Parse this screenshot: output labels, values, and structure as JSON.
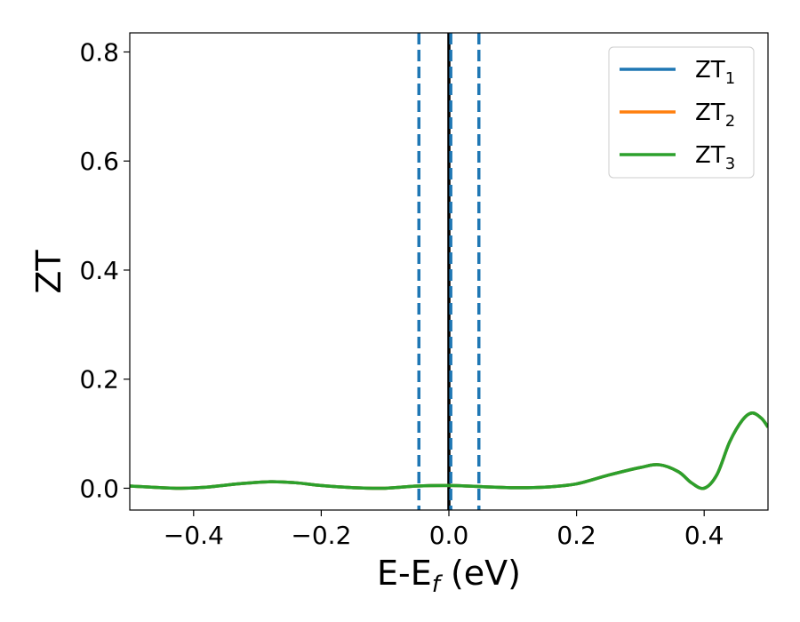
{
  "chart_data": {
    "type": "line",
    "title": "",
    "xlabel": "E-E",
    "xlabel_sub": "f",
    "xlabel_unit": " (eV)",
    "ylabel": "ZT",
    "xlim": [
      -0.5,
      0.5
    ],
    "ylim": [
      -0.04,
      0.835
    ],
    "xticks": [
      -0.4,
      -0.2,
      0.0,
      0.2,
      0.4
    ],
    "xtick_labels": [
      "−0.4",
      "−0.2",
      "0.0",
      "0.2",
      "0.4"
    ],
    "yticks": [
      0.0,
      0.2,
      0.4,
      0.6,
      0.8
    ],
    "ytick_labels": [
      "0.0",
      "0.2",
      "0.4",
      "0.6",
      "0.8"
    ],
    "grid": false,
    "legend_position": "upper-right",
    "vlines": [
      {
        "x": 0.0,
        "color": "#000000",
        "style": "solid"
      },
      {
        "x": -0.047,
        "color": "#1f77b4",
        "style": "dashed"
      },
      {
        "x": 0.047,
        "color": "#1f77b4",
        "style": "dashed"
      },
      {
        "x": 0.003,
        "color": "#1f77b4",
        "style": "dashed"
      }
    ],
    "x": [
      -0.5,
      -0.45,
      -0.42,
      -0.38,
      -0.33,
      -0.28,
      -0.24,
      -0.2,
      -0.15,
      -0.1,
      -0.05,
      0.0,
      0.05,
      0.1,
      0.15,
      0.2,
      0.25,
      0.3,
      0.33,
      0.36,
      0.38,
      0.4,
      0.42,
      0.44,
      0.46,
      0.475,
      0.49,
      0.5
    ],
    "series": [
      {
        "name_base": "ZT",
        "name_sub": "1",
        "color": "#1f77b4",
        "values": [
          0.004,
          0.001,
          0.0,
          0.002,
          0.008,
          0.012,
          0.01,
          0.005,
          0.001,
          0.0,
          0.004,
          0.005,
          0.003,
          0.001,
          0.002,
          0.008,
          0.024,
          0.038,
          0.043,
          0.03,
          0.01,
          0.0,
          0.025,
          0.085,
          0.125,
          0.138,
          0.128,
          0.112
        ]
      },
      {
        "name_base": "ZT",
        "name_sub": "2",
        "color": "#ff7f0e",
        "values": [
          0.004,
          0.001,
          0.0,
          0.002,
          0.008,
          0.012,
          0.01,
          0.005,
          0.001,
          0.0,
          0.004,
          0.005,
          0.003,
          0.001,
          0.002,
          0.008,
          0.024,
          0.038,
          0.043,
          0.03,
          0.01,
          0.0,
          0.025,
          0.085,
          0.125,
          0.138,
          0.128,
          0.112
        ]
      },
      {
        "name_base": "ZT",
        "name_sub": "3",
        "color": "#2ca02c",
        "values": [
          0.004,
          0.001,
          0.0,
          0.002,
          0.008,
          0.012,
          0.01,
          0.005,
          0.001,
          0.0,
          0.004,
          0.005,
          0.003,
          0.001,
          0.002,
          0.008,
          0.024,
          0.038,
          0.043,
          0.03,
          0.01,
          0.0,
          0.025,
          0.085,
          0.125,
          0.138,
          0.128,
          0.112
        ]
      }
    ]
  }
}
